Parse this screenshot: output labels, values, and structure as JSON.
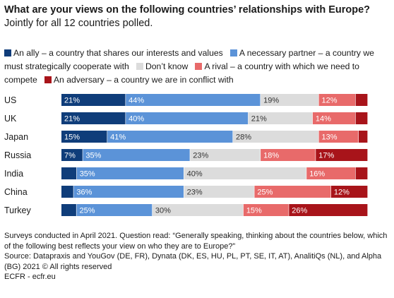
{
  "header": {
    "title_bold": "What are your views on the following countries’ relationships with Europe?",
    "title_rest": " Jointly for all 12 countries polled."
  },
  "chart_data": {
    "type": "bar",
    "orientation": "horizontal",
    "stacked": true,
    "normalized": true,
    "categories": [
      "US",
      "UK",
      "Japan",
      "Russia",
      "India",
      "China",
      "Turkey"
    ],
    "series": [
      {
        "name": "An ally – a country that shares our interests and values",
        "color": "#0f3d7a",
        "label_color": "#ffffff",
        "values": [
          21,
          21,
          15,
          7,
          5,
          4,
          5
        ],
        "labels": [
          "21%",
          "21%",
          "15%",
          "7%",
          "",
          "",
          ""
        ]
      },
      {
        "name": "A necessary partner – a country we must strategically cooperate with",
        "color": "#5b93d8",
        "label_color": "#ffffff",
        "values": [
          44,
          40,
          41,
          35,
          35,
          36,
          25
        ],
        "labels": [
          "44%",
          "40%",
          "41%",
          "35%",
          "35%",
          "36%",
          "25%"
        ]
      },
      {
        "name": "Don’t know",
        "color": "#dcdcdc",
        "label_color": "#333333",
        "values": [
          19,
          21,
          28,
          23,
          40,
          23,
          30
        ],
        "labels": [
          "19%",
          "21%",
          "28%",
          "23%",
          "40%",
          "23%",
          "30%"
        ]
      },
      {
        "name": "A rival – a country with which we need to compete",
        "color": "#e86a6a",
        "label_color": "#ffffff",
        "values": [
          12,
          14,
          13,
          18,
          16,
          25,
          15
        ],
        "labels": [
          "12%",
          "14%",
          "13%",
          "18%",
          "16%",
          "25%",
          "15%"
        ]
      },
      {
        "name": "An adversary – a country we are in conflict with",
        "color": "#a8141a",
        "label_color": "#ffffff",
        "values": [
          4,
          4,
          3,
          17,
          4,
          12,
          26
        ],
        "labels": [
          "",
          "",
          "",
          "17%",
          "",
          "12%",
          "26%"
        ]
      }
    ],
    "xlim": [
      0,
      100
    ],
    "grid": false,
    "legend": "top"
  },
  "notes": {
    "survey": "Surveys conducted in April 2021. Question read: “Generally speaking, thinking about the countries below, which of the following best reflects your view on who they are to Europe?”",
    "source": "Source: Datapraxis and YouGov (DE, FR), Dynata (DK, ES, HU, PL, PT, SE, IT, AT), AnalitiQs (NL), and Alpha (BG) 2021 © All rights reserved",
    "credit": "ECFR - ecfr.eu"
  }
}
